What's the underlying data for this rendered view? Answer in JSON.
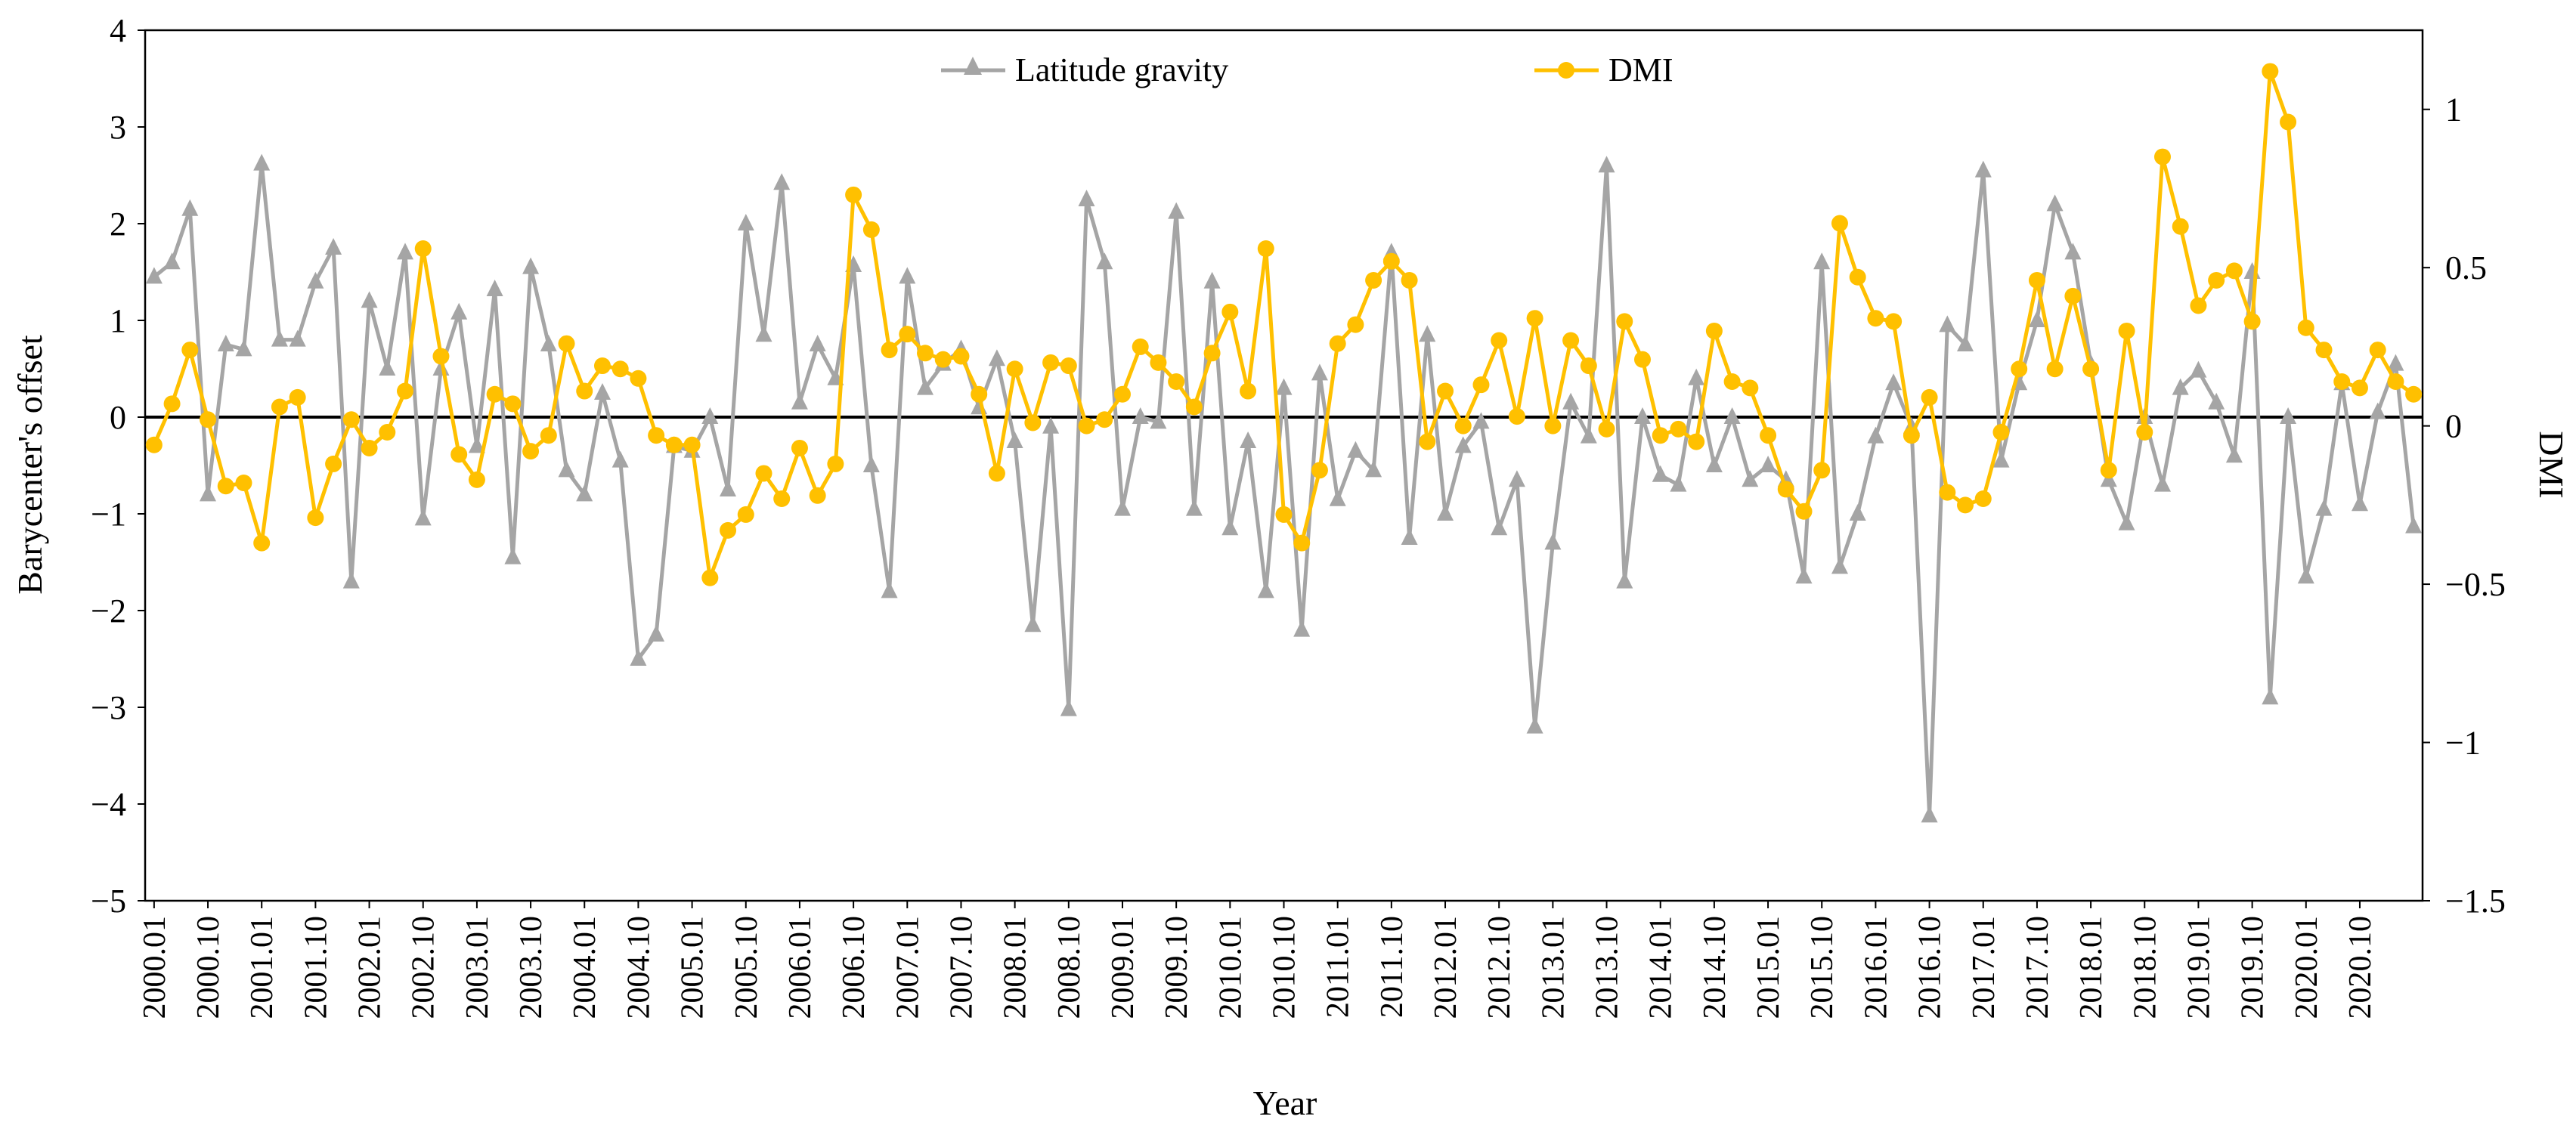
{
  "chart_data": {
    "type": "line",
    "title": "",
    "xlabel": "Year",
    "ylabel": "Barycenter's offset",
    "y2label": "DMI",
    "ylim": [
      -5,
      4
    ],
    "y2lim": [
      -1.5,
      1.25
    ],
    "yticks": [
      -5,
      -4,
      -3,
      -2,
      -1,
      0,
      1,
      2,
      3,
      4
    ],
    "y2ticks": [
      "−1.5",
      "−1",
      "−0.5",
      "0",
      "0.5",
      "1"
    ],
    "y2tick_values": [
      -1.5,
      -1,
      -0.5,
      0,
      0.5,
      1
    ],
    "legend_position": "top-center",
    "x_tick_labels": [
      "2000.01",
      "2000.10",
      "2001.01",
      "2001.10",
      "2002.01",
      "2002.10",
      "2003.01",
      "2003.10",
      "2004.01",
      "2004.10",
      "2005.01",
      "2005.10",
      "2006.01",
      "2006.10",
      "2007.01",
      "2007.10",
      "2008.01",
      "2008.10",
      "2009.01",
      "2009.10",
      "2010.01",
      "2010.10",
      "2011.01",
      "2011.10",
      "2012.01",
      "2012.10",
      "2013.01",
      "2013.10",
      "2014.01",
      "2014.10",
      "2015.01",
      "2015.10",
      "2016.01",
      "2016.10",
      "2017.01",
      "2017.10",
      "2018.01",
      "2018.10",
      "2019.01",
      "2019.10",
      "2020.01",
      "2020.10"
    ],
    "series": [
      {
        "name": "Latitude gravity",
        "axis": "left",
        "color": "#A5A5A5",
        "marker": "triangle",
        "values": [
          1.45,
          1.6,
          2.15,
          -0.8,
          0.75,
          0.7,
          2.62,
          0.8,
          0.8,
          1.4,
          1.75,
          -1.7,
          1.2,
          0.5,
          1.7,
          -1.05,
          0.5,
          1.08,
          -0.3,
          1.32,
          -1.45,
          1.55,
          0.75,
          -0.55,
          -0.8,
          0.25,
          -0.45,
          -2.5,
          -2.25,
          -0.3,
          -0.35,
          0.0,
          -0.75,
          2.0,
          0.85,
          2.42,
          0.15,
          0.75,
          0.4,
          1.57,
          -0.5,
          -1.8,
          1.45,
          0.3,
          0.55,
          0.7,
          0.1,
          0.6,
          -0.25,
          -2.15,
          -0.1,
          -3.02,
          2.25,
          1.6,
          -0.95,
          0.0,
          -0.05,
          2.12,
          -0.95,
          1.4,
          -1.15,
          -0.25,
          -1.8,
          0.3,
          -2.2,
          0.45,
          -0.85,
          -0.35,
          -0.55,
          1.7,
          -1.25,
          0.85,
          -1.0,
          -0.3,
          -0.05,
          -1.15,
          -0.65,
          -3.2,
          -1.3,
          0.15,
          -0.2,
          2.6,
          -1.7,
          0.0,
          -0.6,
          -0.7,
          0.4,
          -0.5,
          0.0,
          -0.65,
          -0.5,
          -0.65,
          -1.65,
          1.6,
          -1.55,
          -1.0,
          -0.2,
          0.35,
          -0.1,
          -4.12,
          0.95,
          0.75,
          2.55,
          -0.45,
          0.35,
          1.0,
          2.2,
          1.7,
          0.55,
          -0.65,
          -1.1,
          0.0,
          -0.7,
          0.3,
          0.48,
          0.15,
          -0.4,
          1.5,
          -2.9,
          0.0,
          -1.65,
          -0.95,
          0.35,
          -0.9,
          0.05,
          0.55,
          -1.13
        ]
      },
      {
        "name": "DMI",
        "axis": "right",
        "color": "#FFC000",
        "marker": "circle",
        "values": [
          -0.06,
          0.07,
          0.24,
          0.02,
          -0.19,
          -0.18,
          -0.37,
          0.06,
          0.09,
          -0.29,
          -0.12,
          0.02,
          -0.07,
          -0.02,
          0.11,
          0.56,
          0.22,
          -0.09,
          -0.17,
          0.1,
          0.07,
          -0.08,
          -0.03,
          0.26,
          0.11,
          0.19,
          0.18,
          0.15,
          -0.03,
          -0.06,
          -0.06,
          -0.48,
          -0.33,
          -0.28,
          -0.15,
          -0.23,
          -0.07,
          -0.22,
          -0.12,
          0.73,
          0.62,
          0.24,
          0.29,
          0.23,
          0.21,
          0.22,
          0.1,
          -0.15,
          0.18,
          0.01,
          0.2,
          0.19,
          0.0,
          0.02,
          0.1,
          0.25,
          0.2,
          0.14,
          0.06,
          0.23,
          0.36,
          0.11,
          0.56,
          -0.28,
          -0.37,
          -0.14,
          0.26,
          0.32,
          0.46,
          0.52,
          0.46,
          -0.05,
          0.11,
          0.0,
          0.13,
          0.27,
          0.03,
          0.34,
          0.0,
          0.27,
          0.19,
          -0.01,
          0.33,
          0.21,
          -0.03,
          -0.01,
          -0.05,
          0.3,
          0.14,
          0.12,
          -0.03,
          -0.2,
          -0.27,
          -0.14,
          0.64,
          0.47,
          0.34,
          0.33,
          -0.03,
          0.09,
          -0.21,
          -0.25,
          -0.23,
          -0.02,
          0.18,
          0.46,
          0.18,
          0.41,
          0.18,
          -0.14,
          0.3,
          -0.02,
          0.85,
          0.63,
          0.38,
          0.46,
          0.49,
          0.33,
          1.12,
          0.96,
          0.31,
          0.24,
          0.14,
          0.12,
          0.24,
          0.14,
          0.1
        ]
      }
    ]
  }
}
